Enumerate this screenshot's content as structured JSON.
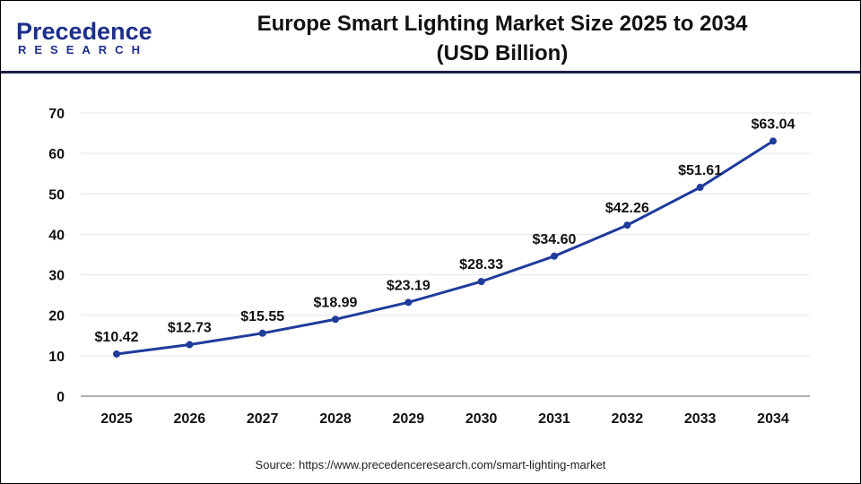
{
  "logo": {
    "line1": "Precedence",
    "line2": "RESEARCH"
  },
  "header": {
    "title_line1": "Europe Smart Lighting Market Size 2025 to 2034",
    "title_line2": "(USD Billion)"
  },
  "source": "Source: https://www.precedenceresearch.com/smart-lighting-market",
  "chart_data": {
    "type": "line",
    "title": "Europe Smart Lighting Market Size 2025 to 2034 (USD Billion)",
    "categories": [
      "2025",
      "2026",
      "2027",
      "2028",
      "2029",
      "2030",
      "2031",
      "2032",
      "2033",
      "2034"
    ],
    "values": [
      10.42,
      12.73,
      15.55,
      18.99,
      23.19,
      28.33,
      34.6,
      42.26,
      51.61,
      63.04
    ],
    "data_labels": [
      "$10.42",
      "$12.73",
      "$15.55",
      "$18.99",
      "$23.19",
      "$28.33",
      "$34.60",
      "$42.26",
      "$51.61",
      "$63.04"
    ],
    "ylim": [
      0,
      70
    ],
    "yticks": [
      0,
      10,
      20,
      30,
      40,
      50,
      60,
      70
    ],
    "grid": true,
    "line_color": "#1f3c9c"
  }
}
